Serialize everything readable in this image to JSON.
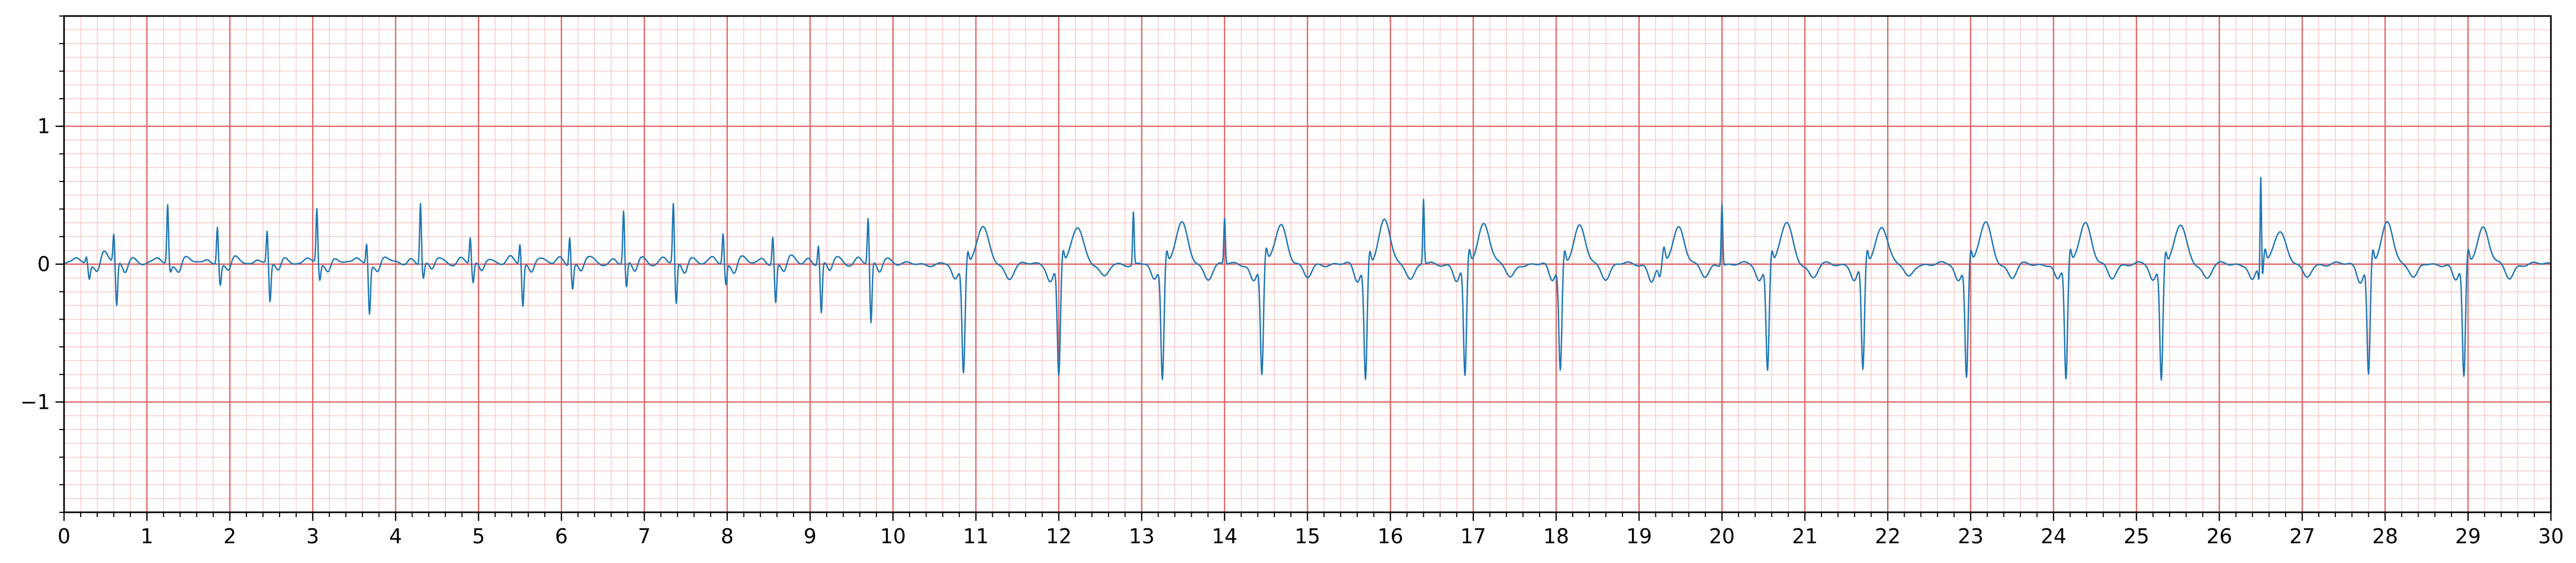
{
  "chart_data": {
    "type": "line",
    "title": "",
    "xlabel": "",
    "ylabel": "",
    "xlim": [
      0,
      30
    ],
    "ylim": [
      -1.8,
      1.8
    ],
    "x_ticks": [
      0,
      1,
      2,
      3,
      4,
      5,
      6,
      7,
      8,
      9,
      10,
      11,
      12,
      13,
      14,
      15,
      16,
      17,
      18,
      19,
      20,
      21,
      22,
      23,
      24,
      25,
      26,
      27,
      28,
      29,
      30
    ],
    "x_tick_labels": [
      "0",
      "1",
      "2",
      "3",
      "4",
      "5",
      "6",
      "7",
      "8",
      "9",
      "10",
      "11",
      "12",
      "13",
      "14",
      "15",
      "16",
      "17",
      "18",
      "19",
      "20",
      "21",
      "22",
      "23",
      "24",
      "25",
      "26",
      "27",
      "28",
      "29",
      "30"
    ],
    "y_ticks": [
      -1,
      0,
      1
    ],
    "y_tick_labels": [
      "−1",
      "0",
      "1"
    ],
    "grid": {
      "major": true,
      "minor": true,
      "major_x_step": 1,
      "major_y_step": 1,
      "minor_x_step": 0.2,
      "minor_y_step": 0.1,
      "major_color": "#e06060",
      "minor_color": "#f8c4c4"
    },
    "series": [
      {
        "color": "#1f77b4",
        "beats_mode1": [
          0.27,
          0.6,
          1.25,
          1.85,
          2.45,
          3.05,
          3.65,
          4.3,
          4.9,
          5.5,
          6.1,
          6.75,
          7.35,
          7.95,
          8.55,
          9.1,
          9.7
        ],
        "beats_mode1_peak": [
          0.05,
          0.2,
          0.43,
          0.27,
          0.23,
          0.39,
          0.15,
          0.45,
          0.19,
          0.15,
          0.21,
          0.38,
          0.43,
          0.22,
          0.2,
          0.14,
          0.33
        ],
        "beats_mode1_trough": [
          -0.1,
          -0.32,
          -0.05,
          -0.15,
          -0.28,
          -0.12,
          -0.35,
          -0.1,
          -0.14,
          -0.3,
          -0.17,
          -0.18,
          -0.3,
          -0.15,
          -0.28,
          -0.36,
          -0.44
        ],
        "beats_mode2": [
          10.85,
          12.0,
          13.25,
          14.45,
          15.7,
          16.9,
          18.05,
          19.25,
          20.55,
          21.7,
          22.95,
          24.15,
          25.3,
          26.5,
          27.8,
          28.95
        ],
        "beats_mode2_trough": [
          -0.77,
          -0.8,
          -0.82,
          -0.8,
          -0.83,
          -0.82,
          -0.76,
          -0.1,
          -0.75,
          -0.77,
          -0.8,
          -0.83,
          -0.82,
          -0.3,
          -0.8,
          -0.82
        ],
        "twave_mode2": [
          0.27,
          0.27,
          0.3,
          0.29,
          0.31,
          0.3,
          0.27,
          0.27,
          0.3,
          0.28,
          0.3,
          0.31,
          0.28,
          0.25,
          0.3,
          0.27
        ],
        "spikes": [
          {
            "x": 12.9,
            "y": 0.38
          },
          {
            "x": 14.0,
            "y": 0.33
          },
          {
            "x": 16.4,
            "y": 0.47
          },
          {
            "x": 20.0,
            "y": 0.45
          },
          {
            "x": 26.5,
            "y": 0.93
          }
        ]
      }
    ]
  }
}
